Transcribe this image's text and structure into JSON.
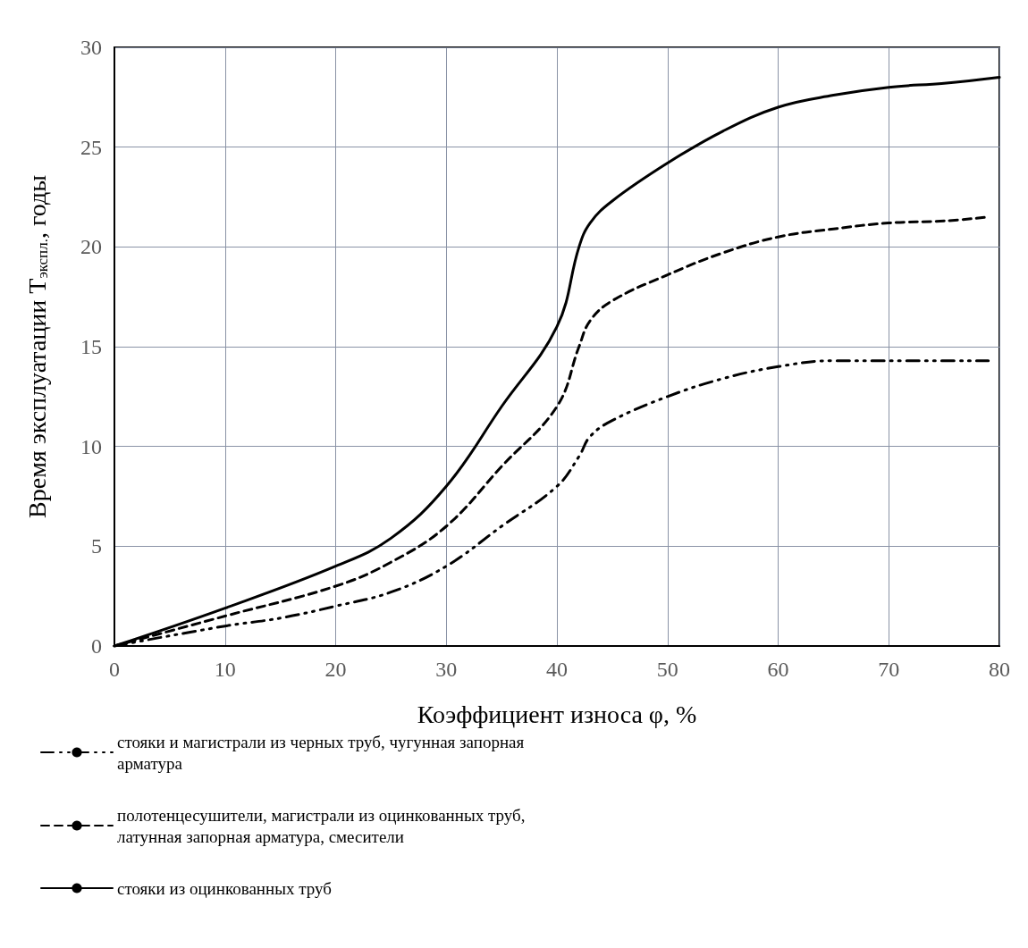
{
  "chart_data": {
    "type": "line",
    "xlabel": "Коэффициент износа φ, %",
    "ylabel": "Время эксплуатации Т$_{экспл.}$, годы",
    "xlim": [
      0,
      80
    ],
    "xticks": [
      0,
      10,
      20,
      30,
      40,
      50,
      60,
      70,
      80
    ],
    "ylim": [
      0,
      30
    ],
    "yticks": [
      0,
      5,
      10,
      15,
      20,
      25,
      30
    ],
    "grid": true,
    "legend": "bottom",
    "marker": "none",
    "series": [
      {
        "name": "стояки и магистрали из черных труб, чугунная запорная арматура",
        "color": "#000000",
        "line_style": "dashdot",
        "x": [
          0,
          10,
          15,
          20,
          25,
          30,
          35,
          40,
          42,
          43,
          45,
          50,
          55,
          60,
          65,
          70,
          79
        ],
        "values": [
          0,
          1,
          1.4,
          2,
          2.7,
          4,
          6,
          8,
          9.5,
          10.5,
          11.3,
          12.5,
          13.4,
          14,
          14.3,
          14.3,
          14.3
        ]
      },
      {
        "name": "полотенцесушители, магистрали из оцинкованных труб, латунная запорная арматура, смесители",
        "color": "#000000",
        "line_style": "dashed",
        "x": [
          0,
          10,
          20,
          25,
          30,
          35,
          40,
          42,
          43,
          45,
          50,
          55,
          60,
          65,
          70,
          75,
          79
        ],
        "values": [
          0,
          1.5,
          3,
          4.2,
          6,
          9,
          12,
          15,
          16.3,
          17.3,
          18.6,
          19.7,
          20.5,
          20.9,
          21.2,
          21.3,
          21.5
        ]
      },
      {
        "name": "стояки из оцинкованных труб",
        "color": "#000000",
        "line_style": "solid",
        "x": [
          0,
          10,
          20,
          25,
          30,
          35,
          40,
          42,
          43,
          45,
          50,
          55,
          60,
          65,
          70,
          75,
          80
        ],
        "values": [
          0,
          1.9,
          4,
          5.4,
          8,
          12,
          16,
          20,
          21.2,
          22.3,
          24.2,
          25.8,
          27,
          27.6,
          28,
          28.2,
          28.5
        ]
      }
    ]
  }
}
